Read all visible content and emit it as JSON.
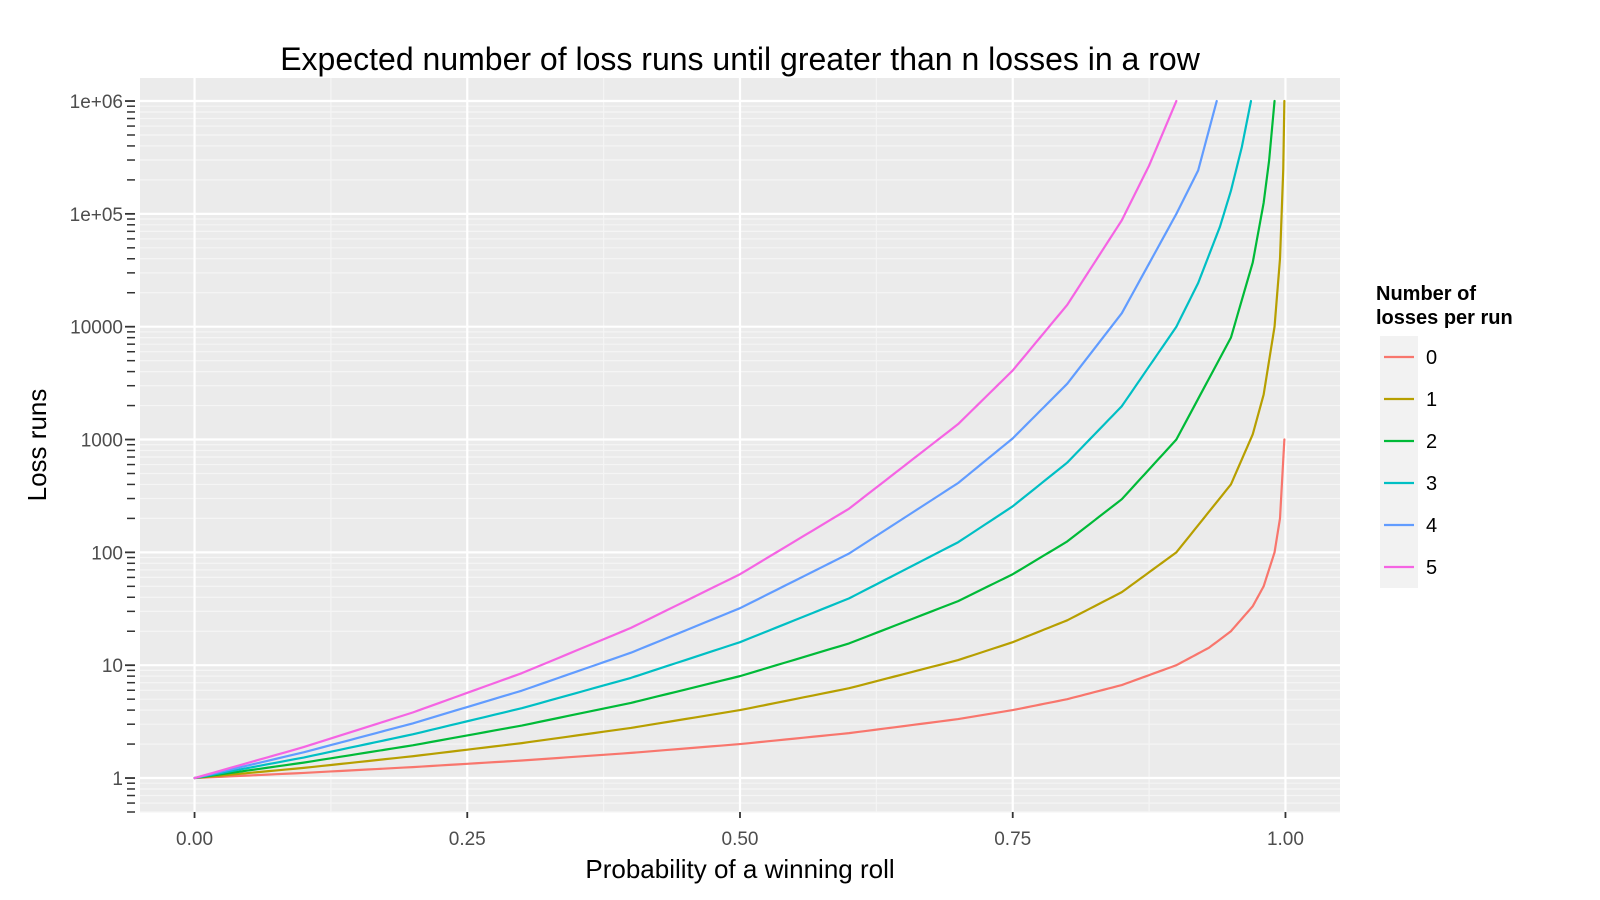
{
  "chart_data": {
    "type": "line",
    "title": "Expected number of loss runs until greater than n losses in a row",
    "xlabel": "Probability of a winning roll",
    "ylabel": "Loss runs",
    "x_scale": "linear",
    "y_scale": "log10",
    "xlim": [
      -0.05,
      1.05
    ],
    "ylim": [
      0.5,
      1600000
    ],
    "x_ticks": [
      0,
      0.25,
      0.5,
      0.75,
      1
    ],
    "x_tick_labels": [
      "0.00",
      "0.25",
      "0.50",
      "0.75",
      "1.00"
    ],
    "y_ticks": [
      1,
      10,
      100,
      1000,
      10000,
      100000,
      1000000
    ],
    "y_tick_labels": [
      "1",
      "10",
      "100",
      "1000",
      "10000",
      "1e+05",
      "1e+06"
    ],
    "grid": true,
    "legend": {
      "title": "Number of losses per run",
      "title_lines": [
        "Number of",
        "losses per run"
      ],
      "position": "right"
    },
    "series": [
      {
        "name": "0",
        "color": "#F8766D",
        "points": [
          [
            0,
            1
          ],
          [
            0.1,
            1.11
          ],
          [
            0.2,
            1.25
          ],
          [
            0.3,
            1.43
          ],
          [
            0.4,
            1.67
          ],
          [
            0.5,
            2
          ],
          [
            0.6,
            2.5
          ],
          [
            0.7,
            3.33
          ],
          [
            0.75,
            4
          ],
          [
            0.8,
            5
          ],
          [
            0.85,
            6.67
          ],
          [
            0.9,
            10
          ],
          [
            0.93,
            14.3
          ],
          [
            0.95,
            20
          ],
          [
            0.97,
            33.3
          ],
          [
            0.98,
            50
          ],
          [
            0.99,
            100
          ],
          [
            0.995,
            200
          ],
          [
            0.999,
            1000
          ]
        ]
      },
      {
        "name": "1",
        "color": "#B79F00",
        "points": [
          [
            0,
            1
          ],
          [
            0.1,
            1.23
          ],
          [
            0.2,
            1.56
          ],
          [
            0.3,
            2.04
          ],
          [
            0.4,
            2.78
          ],
          [
            0.5,
            4
          ],
          [
            0.6,
            6.25
          ],
          [
            0.7,
            11.1
          ],
          [
            0.75,
            16
          ],
          [
            0.8,
            25
          ],
          [
            0.85,
            44.4
          ],
          [
            0.9,
            100
          ],
          [
            0.95,
            400
          ],
          [
            0.97,
            1111
          ],
          [
            0.98,
            2500
          ],
          [
            0.99,
            10000
          ],
          [
            0.995,
            40000
          ],
          [
            0.998,
            250000
          ],
          [
            0.999,
            1000000
          ]
        ]
      },
      {
        "name": "2",
        "color": "#00BA38",
        "points": [
          [
            0,
            1
          ],
          [
            0.1,
            1.37
          ],
          [
            0.2,
            1.95
          ],
          [
            0.3,
            2.92
          ],
          [
            0.4,
            4.63
          ],
          [
            0.5,
            8
          ],
          [
            0.6,
            15.6
          ],
          [
            0.7,
            37
          ],
          [
            0.75,
            64
          ],
          [
            0.8,
            125
          ],
          [
            0.85,
            296
          ],
          [
            0.9,
            1000
          ],
          [
            0.95,
            8000
          ],
          [
            0.97,
            37000
          ],
          [
            0.98,
            125000
          ],
          [
            0.985,
            296000
          ],
          [
            0.99,
            1000000
          ]
        ]
      },
      {
        "name": "3",
        "color": "#00BFC4",
        "points": [
          [
            0,
            1
          ],
          [
            0.1,
            1.52
          ],
          [
            0.2,
            2.44
          ],
          [
            0.3,
            4.16
          ],
          [
            0.4,
            7.72
          ],
          [
            0.5,
            16
          ],
          [
            0.6,
            39.1
          ],
          [
            0.7,
            123
          ],
          [
            0.75,
            256
          ],
          [
            0.8,
            625
          ],
          [
            0.85,
            1975
          ],
          [
            0.9,
            10000
          ],
          [
            0.92,
            24400
          ],
          [
            0.94,
            77200
          ],
          [
            0.95,
            160000
          ],
          [
            0.96,
            390600
          ],
          [
            0.9684,
            1000000
          ]
        ]
      },
      {
        "name": "4",
        "color": "#619CFF",
        "points": [
          [
            0,
            1
          ],
          [
            0.1,
            1.69
          ],
          [
            0.2,
            3.05
          ],
          [
            0.3,
            5.95
          ],
          [
            0.4,
            12.9
          ],
          [
            0.5,
            32
          ],
          [
            0.6,
            97.7
          ],
          [
            0.7,
            412
          ],
          [
            0.75,
            1024
          ],
          [
            0.8,
            3125
          ],
          [
            0.85,
            13170
          ],
          [
            0.9,
            100000
          ],
          [
            0.92,
            243000
          ],
          [
            0.937,
            1000000
          ]
        ]
      },
      {
        "name": "5",
        "color": "#F564E3",
        "points": [
          [
            0,
            1
          ],
          [
            0.1,
            1.88
          ],
          [
            0.2,
            3.81
          ],
          [
            0.3,
            8.5
          ],
          [
            0.4,
            21.4
          ],
          [
            0.5,
            64
          ],
          [
            0.6,
            244
          ],
          [
            0.7,
            1372
          ],
          [
            0.75,
            4096
          ],
          [
            0.8,
            15625
          ],
          [
            0.85,
            87800
          ],
          [
            0.875,
            268000
          ],
          [
            0.9,
            1000000
          ]
        ]
      }
    ]
  }
}
